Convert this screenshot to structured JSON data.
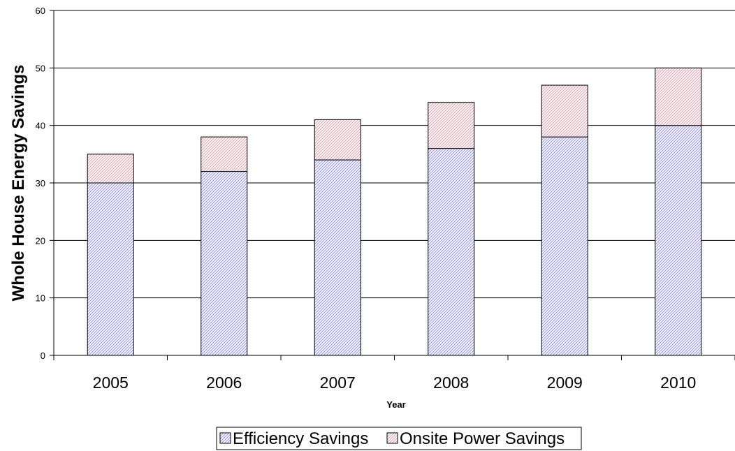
{
  "chart_data": {
    "type": "bar",
    "stacked": true,
    "categories": [
      "2005",
      "2006",
      "2007",
      "2008",
      "2009",
      "2010"
    ],
    "series": [
      {
        "name": "Efficiency Savings",
        "values": [
          30,
          32,
          34,
          36,
          38,
          40
        ]
      },
      {
        "name": "Onsite Power Savings",
        "values": [
          5,
          6,
          7,
          8,
          9,
          10
        ]
      }
    ],
    "xlabel": "Year",
    "ylabel": "Whole House Energy Savings",
    "ylim": [
      0,
      60
    ],
    "yticks": [
      0,
      10,
      20,
      30,
      40,
      50,
      60
    ],
    "grid": true,
    "legend_position": "bottom"
  },
  "colors": {
    "efficiency": "#9a9af0",
    "onsite": "#e7a9b7"
  }
}
